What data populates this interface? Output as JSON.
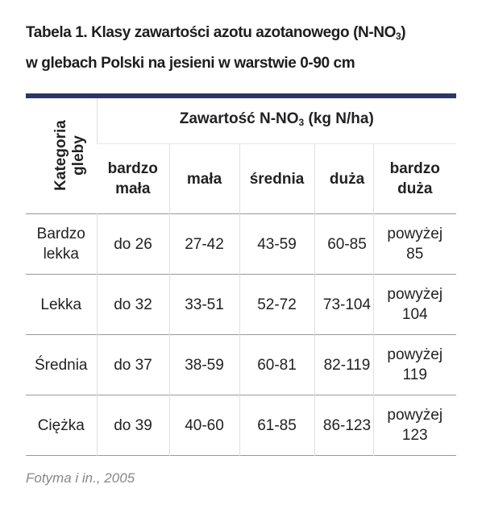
{
  "title": {
    "line1": [
      "Tabela 1. Klasy zawartości azotu azotanowego (N-NO",
      "3",
      ")"
    ],
    "line2": "w glebach Polski na jesieni w warstwie 0-90 cm"
  },
  "table": {
    "corner": "Kategoria gleby",
    "group_header": [
      "Zawartość N-NO",
      "3",
      " (kg N/ha)"
    ],
    "columns": [
      "bardzo mała",
      "mała",
      "średnia",
      "duża",
      "bardzo duża"
    ],
    "rows": [
      [
        "Bardzo lekka",
        "do 26",
        "27-42",
        "43-59",
        "60-85",
        "powyżej 85"
      ],
      [
        "Lekka",
        "do 32",
        "33-51",
        "52-72",
        "73-104",
        "powyżej 104"
      ],
      [
        "Średnia",
        "do 37",
        "38-59",
        "60-81",
        "82-119",
        "powyżej 119"
      ],
      [
        "Ciężka",
        "do 39",
        "40-60",
        "61-85",
        "86-123",
        "powyżej 123"
      ]
    ]
  },
  "source": "Fotyma i in., 2005"
}
